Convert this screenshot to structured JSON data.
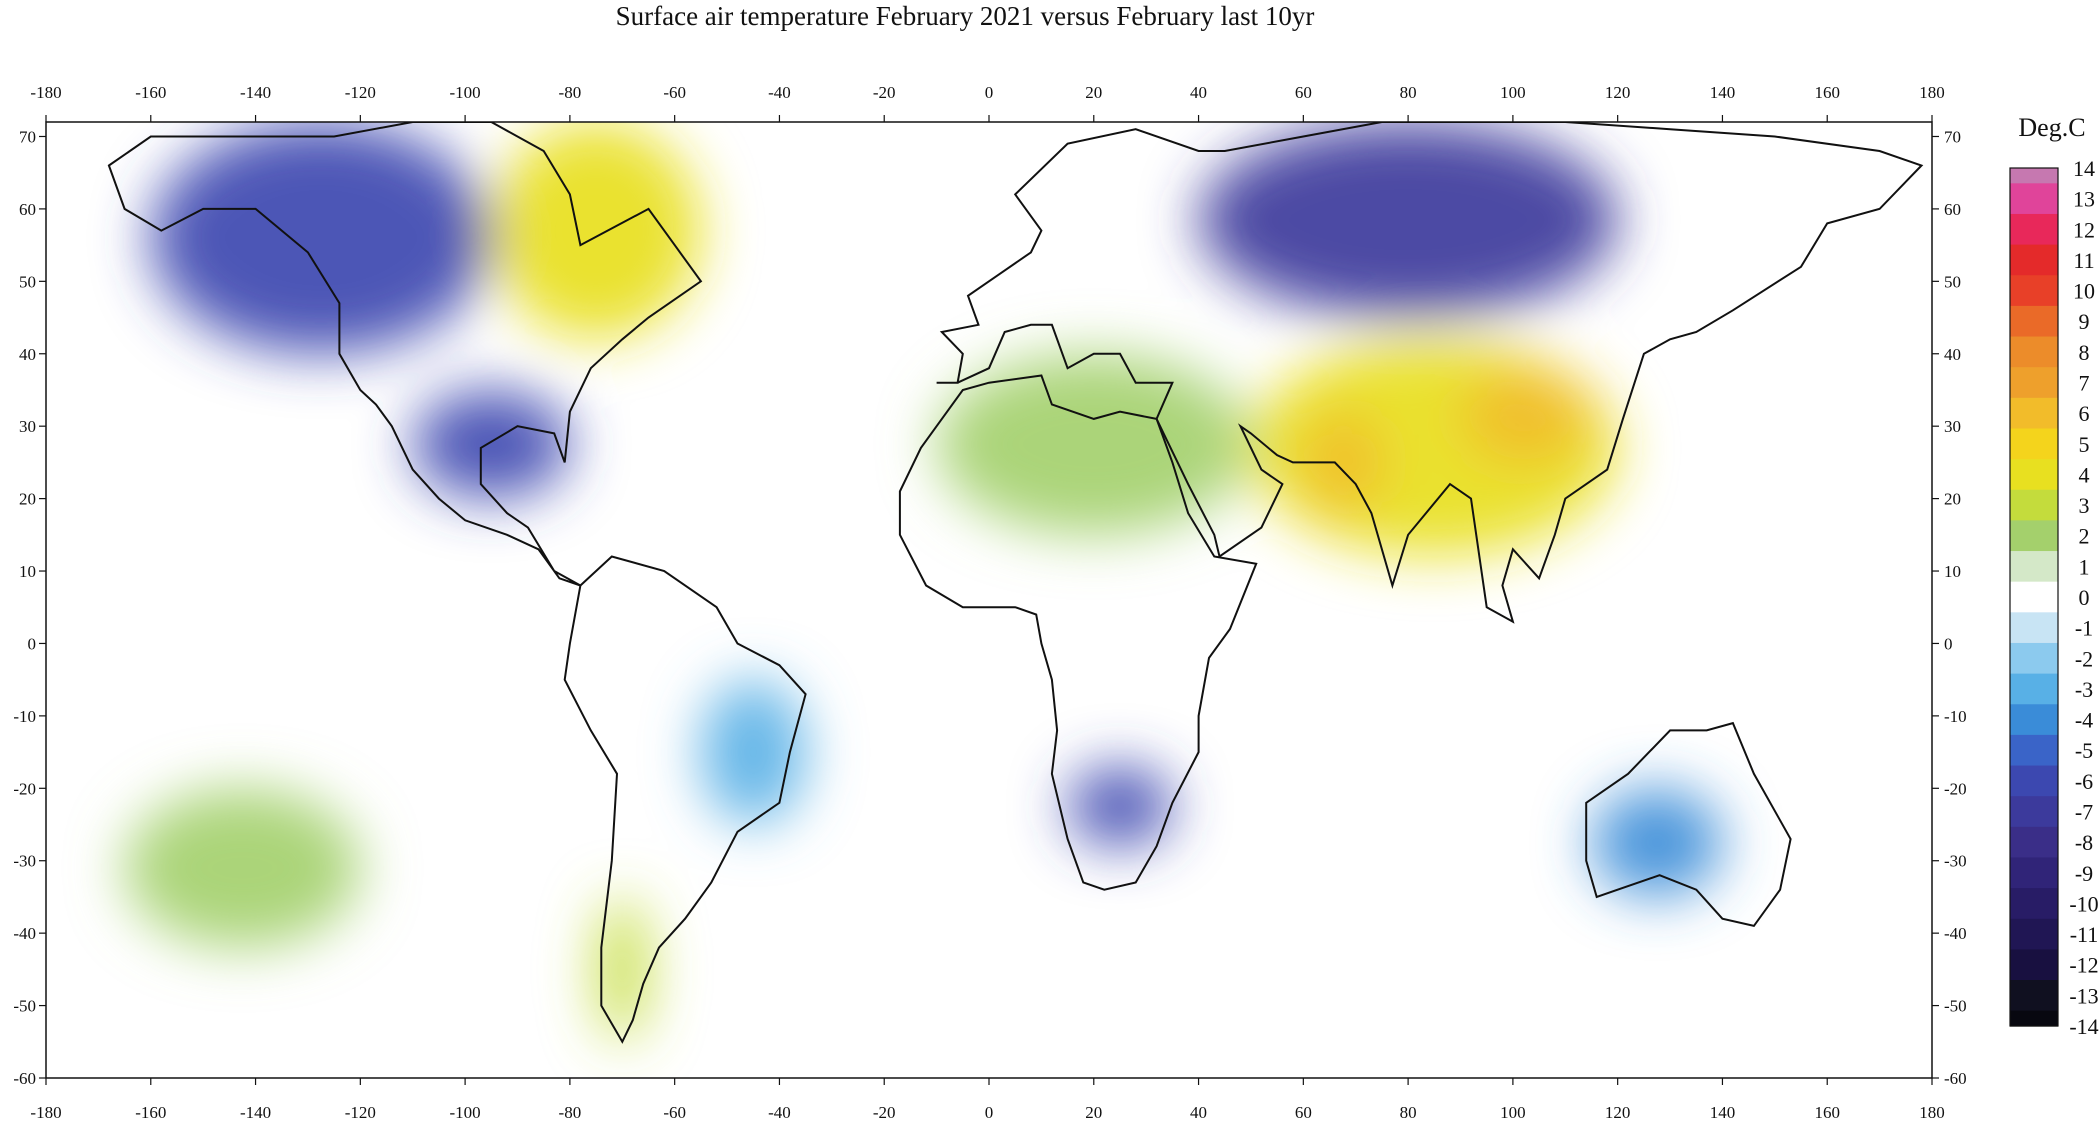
{
  "title": "Surface air temperature February 2021 versus February last 10yr",
  "legend_title": "Deg.C",
  "chart_data": {
    "type": "heatmap",
    "title": "Surface air temperature February 2021 versus February last 10yr",
    "lon_ticks": [
      -180,
      -160,
      -140,
      -120,
      -100,
      -80,
      -60,
      -40,
      -20,
      0,
      20,
      40,
      60,
      80,
      100,
      120,
      140,
      160,
      180
    ],
    "lat_ticks": [
      70,
      60,
      50,
      40,
      30,
      20,
      10,
      0,
      -10,
      -20,
      -30,
      -40,
      -50,
      -60
    ],
    "lon_range": [
      -180,
      180
    ],
    "lat_range": [
      -60,
      72
    ],
    "colorbar": {
      "label": "Deg.C",
      "ticks": [
        14,
        13,
        12,
        11,
        10,
        9,
        8,
        7,
        6,
        5,
        4,
        3,
        2,
        1,
        0,
        -1,
        -2,
        -3,
        -4,
        -5,
        -6,
        -7,
        -8,
        -9,
        -10,
        -11,
        -12,
        -13,
        -14
      ],
      "colors": {
        "14": "#c678b0",
        "13": "#e0449a",
        "12": "#e8285a",
        "11": "#e42a2a",
        "10": "#e84028",
        "9": "#ea6a28",
        "8": "#ec8c2a",
        "7": "#eea02c",
        "6": "#f2bc2a",
        "5": "#f4d41c",
        "4": "#e8e020",
        "3": "#c4dc3c",
        "2": "#a4d06c",
        "1": "#d4e8c8",
        "0": "#ffffff",
        "-1": "#c8e4f4",
        "-2": "#8ccaee",
        "-3": "#58b0e6",
        "-4": "#3a8cd8",
        "-5": "#3a64c8",
        "-6": "#3c48b0",
        "-7": "#3c3a9c",
        "-8": "#3a2e88",
        "-9": "#302478",
        "-10": "#281c66",
        "-11": "#201654",
        "-12": "#181040",
        "-13": "#101020",
        "-14": "#080810"
      }
    },
    "anomaly_regions": [
      {
        "name": "Siberia cold anomaly",
        "lon": [
          40,
          120
        ],
        "lat": [
          45,
          72
        ],
        "value": -7
      },
      {
        "name": "Western Canada / Alaska cold anomaly",
        "lon": [
          -160,
          -95
        ],
        "lat": [
          40,
          72
        ],
        "value": -6
      },
      {
        "name": "Central US cold anomaly",
        "lon": [
          -110,
          -80
        ],
        "lat": [
          20,
          35
        ],
        "value": -6
      },
      {
        "name": "Eastern Canada warm anomaly",
        "lon": [
          -95,
          -55
        ],
        "lat": [
          42,
          72
        ],
        "value": 4
      },
      {
        "name": "Central Asia / China warm anomaly",
        "lon": [
          50,
          120
        ],
        "lat": [
          12,
          42
        ],
        "value": 4
      },
      {
        "name": "Mongolia / North China warm peak",
        "lon": [
          90,
          115
        ],
        "lat": [
          25,
          38
        ],
        "value": 6
      },
      {
        "name": "Afghanistan warm peak",
        "lon": [
          60,
          75
        ],
        "lat": [
          18,
          32
        ],
        "value": 6
      },
      {
        "name": "Southern Africa cold anomaly",
        "lon": [
          15,
          35
        ],
        "lat": [
          -28,
          -17
        ],
        "value": -6
      },
      {
        "name": "Western Australia cold anomaly",
        "lon": [
          115,
          140
        ],
        "lat": [
          -35,
          -20
        ],
        "value": -4
      },
      {
        "name": "Brazil cold anomaly",
        "lon": [
          -55,
          -35
        ],
        "lat": [
          -25,
          -5
        ],
        "value": -3
      },
      {
        "name": "South Pacific warm anomaly",
        "lon": [
          -165,
          -120
        ],
        "lat": [
          -42,
          -20
        ],
        "value": 2
      },
      {
        "name": "Europe / Mediterranean warm anomaly",
        "lon": [
          -10,
          50
        ],
        "lat": [
          15,
          40
        ],
        "value": 2
      },
      {
        "name": "Patagonia warm anomaly",
        "lon": [
          -75,
          -65
        ],
        "lat": [
          -55,
          -35
        ],
        "value": 3
      }
    ]
  }
}
